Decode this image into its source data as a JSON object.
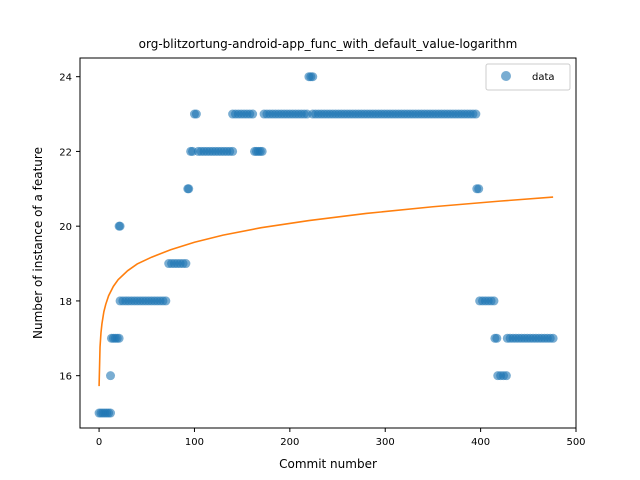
{
  "chart_data": {
    "type": "scatter",
    "title": "org-blitzortung-android-app_func_with_default_value-logarithm",
    "xlabel": "Commit number",
    "ylabel": "Number of instance of a feature",
    "xlim": [
      -20,
      500
    ],
    "ylim": [
      14.6,
      24.5
    ],
    "xticks": [
      0,
      100,
      200,
      300,
      400,
      500
    ],
    "yticks": [
      16,
      18,
      20,
      22,
      24
    ],
    "grid": false,
    "legend": {
      "position": "top-right",
      "entries": [
        "data"
      ]
    },
    "colors": {
      "data": "#1f77b4",
      "fit": "#ff7f0e"
    },
    "series": [
      {
        "name": "data",
        "kind": "scatter",
        "points": [
          [
            0,
            15
          ],
          [
            2,
            15
          ],
          [
            4,
            15
          ],
          [
            6,
            15
          ],
          [
            8,
            15
          ],
          [
            10,
            15
          ],
          [
            12,
            15
          ],
          [
            12,
            16
          ],
          [
            13,
            17
          ],
          [
            15,
            17
          ],
          [
            17,
            17
          ],
          [
            19,
            17
          ],
          [
            21,
            17
          ],
          [
            21,
            20
          ],
          [
            22,
            20
          ],
          [
            22,
            18
          ],
          [
            25,
            18
          ],
          [
            28,
            18
          ],
          [
            31,
            18
          ],
          [
            34,
            18
          ],
          [
            37,
            18
          ],
          [
            40,
            18
          ],
          [
            43,
            18
          ],
          [
            46,
            18
          ],
          [
            49,
            18
          ],
          [
            52,
            18
          ],
          [
            55,
            18
          ],
          [
            58,
            18
          ],
          [
            61,
            18
          ],
          [
            64,
            18
          ],
          [
            67,
            18
          ],
          [
            70,
            18
          ],
          [
            73,
            19
          ],
          [
            76,
            19
          ],
          [
            79,
            19
          ],
          [
            82,
            19
          ],
          [
            85,
            19
          ],
          [
            88,
            19
          ],
          [
            91,
            19
          ],
          [
            93,
            21
          ],
          [
            94,
            21
          ],
          [
            96,
            22
          ],
          [
            98,
            22
          ],
          [
            100,
            23
          ],
          [
            102,
            23
          ],
          [
            104,
            22
          ],
          [
            107,
            22
          ],
          [
            110,
            22
          ],
          [
            113,
            22
          ],
          [
            116,
            22
          ],
          [
            119,
            22
          ],
          [
            122,
            22
          ],
          [
            125,
            22
          ],
          [
            128,
            22
          ],
          [
            131,
            22
          ],
          [
            134,
            22
          ],
          [
            137,
            22
          ],
          [
            140,
            22
          ],
          [
            140,
            23
          ],
          [
            143,
            23
          ],
          [
            146,
            23
          ],
          [
            149,
            23
          ],
          [
            152,
            23
          ],
          [
            155,
            23
          ],
          [
            158,
            23
          ],
          [
            161,
            23
          ],
          [
            163,
            22
          ],
          [
            165,
            22
          ],
          [
            167,
            22
          ],
          [
            169,
            22
          ],
          [
            171,
            22
          ],
          [
            173,
            23
          ],
          [
            176,
            23
          ],
          [
            179,
            23
          ],
          [
            182,
            23
          ],
          [
            185,
            23
          ],
          [
            188,
            23
          ],
          [
            191,
            23
          ],
          [
            194,
            23
          ],
          [
            197,
            23
          ],
          [
            200,
            23
          ],
          [
            203,
            23
          ],
          [
            206,
            23
          ],
          [
            209,
            23
          ],
          [
            212,
            23
          ],
          [
            215,
            23
          ],
          [
            218,
            23
          ],
          [
            220,
            24
          ],
          [
            222,
            24
          ],
          [
            224,
            24
          ],
          [
            224,
            23
          ],
          [
            227,
            23
          ],
          [
            230,
            23
          ],
          [
            233,
            23
          ],
          [
            236,
            23
          ],
          [
            239,
            23
          ],
          [
            242,
            23
          ],
          [
            245,
            23
          ],
          [
            248,
            23
          ],
          [
            251,
            23
          ],
          [
            254,
            23
          ],
          [
            257,
            23
          ],
          [
            260,
            23
          ],
          [
            263,
            23
          ],
          [
            266,
            23
          ],
          [
            269,
            23
          ],
          [
            272,
            23
          ],
          [
            275,
            23
          ],
          [
            278,
            23
          ],
          [
            281,
            23
          ],
          [
            284,
            23
          ],
          [
            287,
            23
          ],
          [
            290,
            23
          ],
          [
            293,
            23
          ],
          [
            296,
            23
          ],
          [
            299,
            23
          ],
          [
            302,
            23
          ],
          [
            305,
            23
          ],
          [
            308,
            23
          ],
          [
            311,
            23
          ],
          [
            314,
            23
          ],
          [
            317,
            23
          ],
          [
            320,
            23
          ],
          [
            323,
            23
          ],
          [
            326,
            23
          ],
          [
            329,
            23
          ],
          [
            332,
            23
          ],
          [
            335,
            23
          ],
          [
            338,
            23
          ],
          [
            341,
            23
          ],
          [
            344,
            23
          ],
          [
            347,
            23
          ],
          [
            350,
            23
          ],
          [
            353,
            23
          ],
          [
            356,
            23
          ],
          [
            359,
            23
          ],
          [
            362,
            23
          ],
          [
            365,
            23
          ],
          [
            368,
            23
          ],
          [
            371,
            23
          ],
          [
            374,
            23
          ],
          [
            377,
            23
          ],
          [
            380,
            23
          ],
          [
            383,
            23
          ],
          [
            386,
            23
          ],
          [
            389,
            23
          ],
          [
            392,
            23
          ],
          [
            395,
            23
          ],
          [
            396,
            21
          ],
          [
            398,
            21
          ],
          [
            399,
            18
          ],
          [
            402,
            18
          ],
          [
            405,
            18
          ],
          [
            408,
            18
          ],
          [
            411,
            18
          ],
          [
            414,
            18
          ],
          [
            415,
            17
          ],
          [
            417,
            17
          ],
          [
            418,
            16
          ],
          [
            421,
            16
          ],
          [
            424,
            16
          ],
          [
            427,
            16
          ],
          [
            428,
            17
          ],
          [
            431,
            17
          ],
          [
            434,
            17
          ],
          [
            437,
            17
          ],
          [
            440,
            17
          ],
          [
            443,
            17
          ],
          [
            446,
            17
          ],
          [
            449,
            17
          ],
          [
            452,
            17
          ],
          [
            455,
            17
          ],
          [
            458,
            17
          ],
          [
            461,
            17
          ],
          [
            464,
            17
          ],
          [
            467,
            17
          ],
          [
            470,
            17
          ],
          [
            473,
            17
          ],
          [
            476,
            17
          ]
        ]
      },
      {
        "kind": "line",
        "x": [
          0,
          1,
          2,
          3,
          5,
          7,
          10,
          15,
          20,
          30,
          40,
          55,
          75,
          100,
          130,
          170,
          220,
          280,
          350,
          420,
          476
        ],
        "y": [
          15.72,
          16.77,
          17.15,
          17.39,
          17.71,
          17.91,
          18.14,
          18.39,
          18.57,
          18.81,
          18.99,
          19.17,
          19.37,
          19.57,
          19.76,
          19.96,
          20.15,
          20.34,
          20.52,
          20.67,
          20.78
        ]
      }
    ]
  }
}
